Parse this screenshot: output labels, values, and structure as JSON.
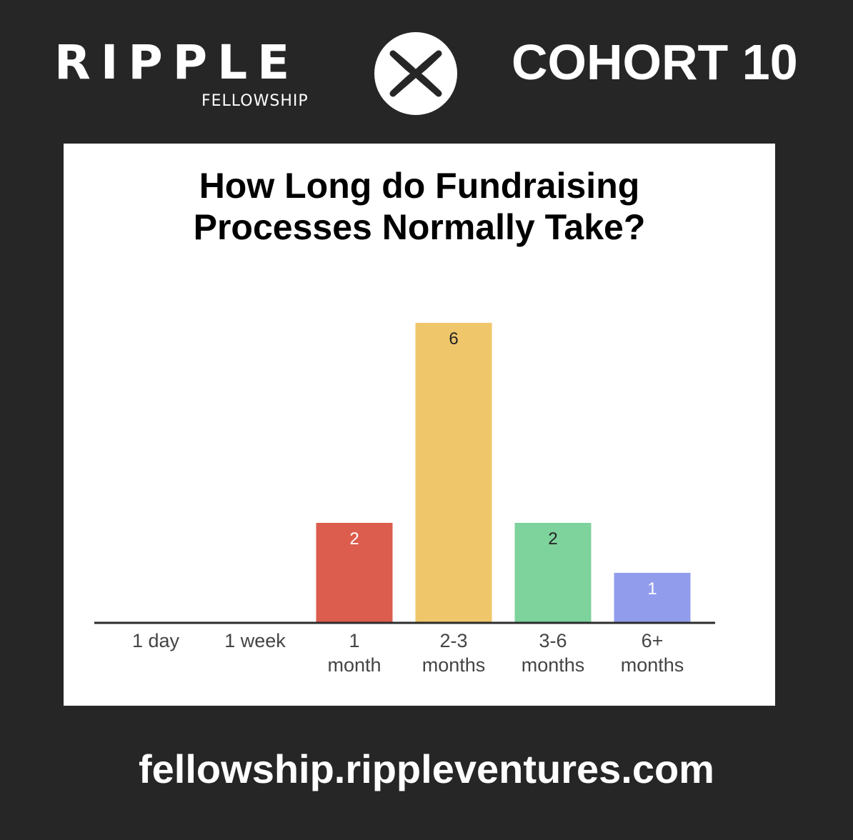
{
  "header": {
    "logo_text": "RIPPLE",
    "logo_subtext": "FELLOWSHIP",
    "logo_icon": "x-circle-icon",
    "cohort_label": "COHORT 10"
  },
  "footer": {
    "url": "fellowship.rippleventures.com"
  },
  "chart_data": {
    "type": "bar",
    "title_lines": [
      "How Long do Fundraising",
      "Processes Normally Take?"
    ],
    "categories": [
      [
        "1 day"
      ],
      [
        "1 week"
      ],
      [
        "1",
        "month"
      ],
      [
        "2-3",
        "months"
      ],
      [
        "3-6",
        "months"
      ],
      [
        "6+",
        "months"
      ]
    ],
    "values": [
      0,
      0,
      2,
      6,
      2,
      1
    ],
    "data_labels": [
      "",
      "",
      "2",
      "6",
      "2",
      "1"
    ],
    "colors": [
      "#dc5c4d",
      "#dc5c4d",
      "#dc5c4d",
      "#efc66a",
      "#7ed29c",
      "#919cec"
    ],
    "label_colors": [
      "#ffffff",
      "#ffffff",
      "#ffffff",
      "#222222",
      "#222222",
      "#ffffff"
    ],
    "ylim": [
      0,
      6
    ],
    "grid": false,
    "xlabel": "",
    "ylabel": ""
  }
}
